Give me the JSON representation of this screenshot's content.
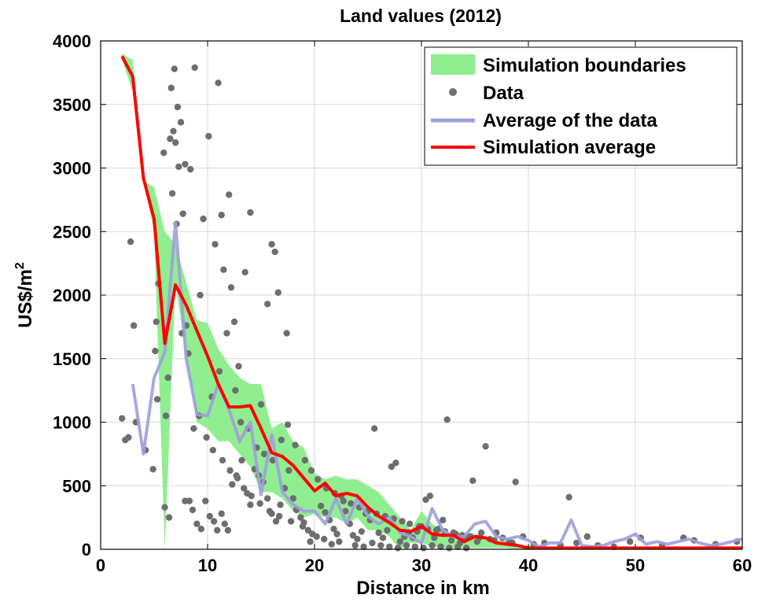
{
  "chart_data": {
    "type": "line",
    "title": "Land values (2012)",
    "xlabel": "Distance in km",
    "ylabel": "US$/m",
    "ylabel_superscript": "2",
    "xlim": [
      0,
      60
    ],
    "ylim": [
      0,
      4000
    ],
    "x_ticks": [
      "0",
      "10",
      "20",
      "30",
      "40",
      "50",
      "60"
    ],
    "y_ticks": [
      "0",
      "500",
      "1000",
      "1500",
      "2000",
      "2500",
      "3000",
      "3500",
      "4000"
    ],
    "grid": true,
    "legend_position": "top-right",
    "colors": {
      "band": "#90ee90",
      "data": "#6e6e6e",
      "average_data": "#9f9fdb",
      "simulation": "#ff0000"
    },
    "series": [
      {
        "name": "Simulation boundaries",
        "kind": "band",
        "x": [
          2,
          3,
          4,
          5,
          6,
          7,
          8,
          9,
          10,
          11,
          12,
          13,
          14,
          15,
          16,
          17,
          18,
          19,
          20,
          21,
          22,
          23,
          24,
          25,
          26,
          27,
          28,
          29,
          30,
          31,
          32,
          33,
          34,
          35,
          36,
          37,
          38,
          39,
          40,
          41,
          42,
          43,
          44,
          45,
          46,
          47,
          48,
          49,
          50,
          51,
          52,
          53,
          54,
          55,
          56,
          57,
          58,
          59,
          60
        ],
        "upper": [
          3900,
          3850,
          2900,
          2850,
          2500,
          2400,
          2100,
          1800,
          1780,
          1580,
          1450,
          1350,
          1300,
          1300,
          950,
          1000,
          850,
          800,
          600,
          550,
          580,
          550,
          550,
          500,
          450,
          350,
          250,
          150,
          300,
          200,
          150,
          120,
          100,
          120,
          100,
          80,
          60,
          40,
          30,
          20,
          20,
          20,
          20,
          20,
          20,
          20,
          20,
          20,
          20,
          20,
          20,
          20,
          20,
          20,
          20,
          20,
          20,
          20,
          20
        ],
        "lower": [
          3850,
          3600,
          2900,
          2500,
          0,
          2100,
          1500,
          1000,
          950,
          850,
          850,
          750,
          650,
          450,
          450,
          400,
          300,
          250,
          280,
          250,
          250,
          200,
          250,
          150,
          150,
          100,
          0,
          50,
          50,
          20,
          10,
          10,
          10,
          10,
          10,
          10,
          10,
          0,
          0,
          0,
          0,
          0,
          0,
          0,
          0,
          0,
          0,
          0,
          0,
          0,
          0,
          0,
          0,
          0,
          0,
          0,
          0,
          0,
          0
        ]
      },
      {
        "name": "Data",
        "kind": "scatter",
        "points": [
          [
            2,
            1030
          ],
          [
            2.3,
            860
          ],
          [
            2.6,
            880
          ],
          [
            2.8,
            2420
          ],
          [
            3.1,
            1760
          ],
          [
            3.3,
            1000
          ],
          [
            4.2,
            780
          ],
          [
            4.9,
            630
          ],
          [
            5.1,
            1560
          ],
          [
            5.3,
            1180
          ],
          [
            5.4,
            2090
          ],
          [
            5.9,
            3120
          ],
          [
            6.0,
            330
          ],
          [
            6.1,
            1050
          ],
          [
            6.4,
            250
          ],
          [
            6.5,
            3230
          ],
          [
            6.6,
            3630
          ],
          [
            6.7,
            2800
          ],
          [
            6.8,
            3290
          ],
          [
            6.9,
            3780
          ],
          [
            7.0,
            3200
          ],
          [
            7.1,
            2560
          ],
          [
            7.2,
            3480
          ],
          [
            7.3,
            3010
          ],
          [
            7.5,
            3360
          ],
          [
            7.7,
            2640
          ],
          [
            7.9,
            3030
          ],
          [
            8.0,
            1760
          ],
          [
            8.4,
            2990
          ],
          [
            8.8,
            3790
          ],
          [
            5.2,
            1790
          ],
          [
            6.3,
            1350
          ],
          [
            7.6,
            1700
          ],
          [
            8.2,
            1540
          ],
          [
            9.3,
            2000
          ],
          [
            9.6,
            2600
          ],
          [
            10.1,
            3250
          ],
          [
            10.7,
            2400
          ],
          [
            11.0,
            3670
          ],
          [
            11.3,
            2630
          ],
          [
            11.5,
            2200
          ],
          [
            11.8,
            1700
          ],
          [
            12.0,
            2790
          ],
          [
            12.2,
            2060
          ],
          [
            12.5,
            1790
          ],
          [
            12.9,
            1440
          ],
          [
            13.5,
            2180
          ],
          [
            14.0,
            2650
          ],
          [
            15.0,
            1140
          ],
          [
            15.6,
            1930
          ],
          [
            16.0,
            2400
          ],
          [
            16.3,
            2340
          ],
          [
            16.6,
            2020
          ],
          [
            17.4,
            1700
          ],
          [
            7.9,
            380
          ],
          [
            8.3,
            380
          ],
          [
            8.6,
            310
          ],
          [
            9.0,
            200
          ],
          [
            9.4,
            160
          ],
          [
            9.8,
            380
          ],
          [
            10.2,
            260
          ],
          [
            10.6,
            220
          ],
          [
            10.9,
            150
          ],
          [
            11.3,
            280
          ],
          [
            11.6,
            200
          ],
          [
            11.9,
            150
          ],
          [
            12.3,
            510
          ],
          [
            12.7,
            580
          ],
          [
            13.2,
            700
          ],
          [
            13.7,
            440
          ],
          [
            14.0,
            350
          ],
          [
            14.4,
            630
          ],
          [
            14.8,
            580
          ],
          [
            15.2,
            530
          ],
          [
            15.6,
            400
          ],
          [
            16.0,
            280
          ],
          [
            16.4,
            220
          ],
          [
            16.8,
            350
          ],
          [
            17.2,
            480
          ],
          [
            17.6,
            620
          ],
          [
            18.0,
            400
          ],
          [
            18.3,
            310
          ],
          [
            18.7,
            250
          ],
          [
            19.0,
            210
          ],
          [
            19.4,
            150
          ],
          [
            19.8,
            120
          ],
          [
            20.2,
            100
          ],
          [
            20.6,
            340
          ],
          [
            21.0,
            290
          ],
          [
            21.4,
            230
          ],
          [
            21.8,
            160
          ],
          [
            22.1,
            120
          ],
          [
            22.5,
            420
          ],
          [
            22.9,
            300
          ],
          [
            23.3,
            200
          ],
          [
            23.6,
            110
          ],
          [
            24.0,
            80
          ],
          [
            24.4,
            140
          ],
          [
            24.8,
            280
          ],
          [
            25.2,
            230
          ],
          [
            25.6,
            950
          ],
          [
            26.0,
            130
          ],
          [
            26.4,
            90
          ],
          [
            26.8,
            150
          ],
          [
            27.2,
            650
          ],
          [
            27.6,
            680
          ],
          [
            28.0,
            60
          ],
          [
            28.4,
            100
          ],
          [
            28.8,
            130
          ],
          [
            29.2,
            90
          ],
          [
            29.6,
            140
          ],
          [
            30.0,
            180
          ],
          [
            30.4,
            390
          ],
          [
            30.8,
            420
          ],
          [
            31.2,
            90
          ],
          [
            31.6,
            160
          ],
          [
            32.0,
            230
          ],
          [
            32.4,
            1020
          ],
          [
            32.8,
            70
          ],
          [
            33.2,
            120
          ],
          [
            33.6,
            50
          ],
          [
            34.0,
            80
          ],
          [
            34.4,
            100
          ],
          [
            34.8,
            540
          ],
          [
            35.2,
            60
          ],
          [
            35.6,
            130
          ],
          [
            36.0,
            810
          ],
          [
            36.4,
            80
          ],
          [
            37.0,
            130
          ],
          [
            37.6,
            90
          ],
          [
            38.2,
            60
          ],
          [
            38.8,
            530
          ],
          [
            39.5,
            100
          ],
          [
            40.5,
            40
          ],
          [
            41.5,
            50
          ],
          [
            43.0,
            30
          ],
          [
            43.8,
            410
          ],
          [
            44.5,
            50
          ],
          [
            45.5,
            100
          ],
          [
            46.5,
            30
          ],
          [
            48.0,
            20
          ],
          [
            49.5,
            60
          ],
          [
            50.5,
            90
          ],
          [
            52.5,
            30
          ],
          [
            54.5,
            90
          ],
          [
            55.5,
            70
          ],
          [
            57.5,
            40
          ],
          [
            59.5,
            60
          ],
          [
            13.1,
            1000
          ],
          [
            13.8,
            950
          ],
          [
            14.6,
            800
          ],
          [
            15.3,
            750
          ],
          [
            16.1,
            700
          ],
          [
            16.9,
            860
          ],
          [
            17.5,
            980
          ],
          [
            18.2,
            820
          ],
          [
            19.1,
            700
          ],
          [
            19.7,
            620
          ],
          [
            20.3,
            550
          ],
          [
            21.1,
            480
          ],
          [
            21.9,
            440
          ],
          [
            22.7,
            380
          ],
          [
            23.4,
            360
          ],
          [
            24.2,
            330
          ],
          [
            25.0,
            300
          ],
          [
            25.8,
            280
          ],
          [
            26.6,
            260
          ],
          [
            27.4,
            240
          ],
          [
            28.2,
            220
          ],
          [
            28.9,
            200
          ],
          [
            29.8,
            180
          ],
          [
            30.6,
            160
          ],
          [
            31.4,
            150
          ],
          [
            32.2,
            140
          ],
          [
            33.0,
            130
          ],
          [
            33.8,
            110
          ],
          [
            34.6,
            100
          ],
          [
            35.4,
            90
          ],
          [
            36.8,
            70
          ],
          [
            38.5,
            50
          ],
          [
            10.4,
            1200
          ],
          [
            11.1,
            1400
          ],
          [
            12.6,
            1250
          ],
          [
            9.2,
            1050
          ],
          [
            8.7,
            950
          ],
          [
            9.9,
            880
          ],
          [
            10.5,
            780
          ],
          [
            11.4,
            700
          ],
          [
            12.1,
            620
          ],
          [
            12.8,
            560
          ],
          [
            13.4,
            480
          ],
          [
            14.1,
            420
          ],
          [
            14.9,
            360
          ],
          [
            15.8,
            300
          ],
          [
            16.7,
            260
          ],
          [
            17.8,
            220
          ],
          [
            18.9,
            180
          ],
          [
            19.6,
            60
          ],
          [
            20.9,
            80
          ],
          [
            21.6,
            40
          ],
          [
            22.3,
            60
          ],
          [
            23.8,
            30
          ],
          [
            24.6,
            20
          ],
          [
            25.4,
            50
          ],
          [
            26.2,
            30
          ],
          [
            27.0,
            20
          ],
          [
            27.8,
            10
          ],
          [
            28.6,
            30
          ],
          [
            29.4,
            20
          ],
          [
            30.2,
            10
          ],
          [
            31.0,
            30
          ],
          [
            31.8,
            20
          ],
          [
            32.6,
            10
          ],
          [
            33.4,
            20
          ],
          [
            34.2,
            10
          ]
        ]
      },
      {
        "name": "Average of the data",
        "kind": "line",
        "x": [
          3,
          4,
          5,
          6,
          7,
          8,
          9,
          10,
          11,
          12,
          13,
          14,
          15,
          16,
          17,
          18,
          19,
          20,
          21,
          22,
          23,
          24,
          25,
          26,
          27,
          28,
          29,
          30,
          31,
          32,
          33,
          34,
          35,
          36,
          37,
          38,
          39,
          40,
          41,
          42,
          43,
          44,
          45,
          46,
          47,
          48,
          49,
          50,
          51,
          52,
          53,
          54,
          55,
          56,
          57,
          58,
          59,
          60
        ],
        "y": [
          1300,
          750,
          1350,
          1550,
          2570,
          1500,
          1060,
          1050,
          1300,
          1100,
          850,
          1000,
          430,
          900,
          450,
          350,
          300,
          300,
          200,
          400,
          200,
          400,
          260,
          200,
          250,
          130,
          100,
          50,
          320,
          150,
          100,
          100,
          200,
          220,
          100,
          80,
          100,
          70,
          20,
          50,
          50,
          230,
          30,
          20,
          30,
          60,
          80,
          120,
          40,
          60,
          40,
          60,
          80,
          50,
          30,
          40,
          60,
          80
        ]
      },
      {
        "name": "Simulation average",
        "kind": "line",
        "x": [
          2,
          3,
          4,
          5,
          6,
          7,
          8,
          9,
          10,
          11,
          12,
          13,
          14,
          15,
          16,
          17,
          18,
          19,
          20,
          21,
          22,
          23,
          24,
          25,
          26,
          27,
          28,
          29,
          30,
          31,
          32,
          33,
          34,
          35,
          36,
          37,
          38,
          39,
          40,
          41,
          42,
          43,
          44,
          45,
          46,
          47,
          48,
          49,
          50,
          51,
          52,
          53,
          54,
          55,
          56,
          57,
          58,
          59,
          60
        ],
        "y": [
          3880,
          3720,
          2920,
          2600,
          1620,
          2080,
          1920,
          1720,
          1520,
          1300,
          1120,
          1120,
          1130,
          950,
          760,
          730,
          660,
          560,
          460,
          520,
          420,
          440,
          420,
          330,
          260,
          210,
          150,
          140,
          180,
          120,
          110,
          110,
          60,
          100,
          90,
          50,
          40,
          30,
          10,
          10,
          10,
          10,
          10,
          10,
          10,
          10,
          10,
          10,
          10,
          10,
          10,
          10,
          10,
          10,
          10,
          10,
          10,
          10,
          10
        ]
      }
    ]
  }
}
